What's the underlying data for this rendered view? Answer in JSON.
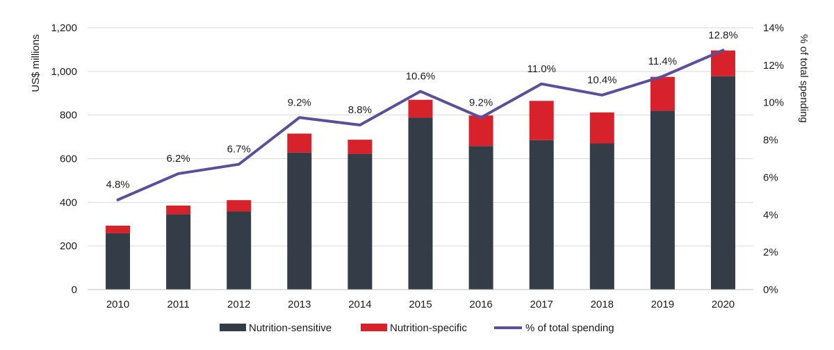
{
  "chart_data": {
    "type": "bar",
    "stacked": true,
    "categories": [
      "2010",
      "2011",
      "2012",
      "2013",
      "2014",
      "2015",
      "2016",
      "2017",
      "2018",
      "2019",
      "2020"
    ],
    "series": [
      {
        "name": "Nutrition-sensitive",
        "type": "bar",
        "axis": "left",
        "color": "#333c47",
        "values": [
          258,
          345,
          358,
          628,
          622,
          788,
          658,
          685,
          670,
          820,
          978
        ]
      },
      {
        "name": "Nutrition-specific",
        "type": "bar",
        "axis": "left",
        "color": "#d7222c",
        "values": [
          35,
          40,
          52,
          87,
          65,
          82,
          140,
          180,
          142,
          155,
          118
        ]
      },
      {
        "name": "% of total spending",
        "type": "line",
        "axis": "right",
        "color": "#5b4f9a",
        "values": [
          4.8,
          6.2,
          6.7,
          9.2,
          8.8,
          10.6,
          9.2,
          11.0,
          10.4,
          11.4,
          12.8
        ],
        "labels": [
          "4.8%",
          "6.2%",
          "6.7%",
          "9.2%",
          "8.8%",
          "10.6%",
          "9.2%",
          "11.0%",
          "10.4%",
          "11.4%",
          "12.8%"
        ]
      }
    ],
    "ylabel": "US$ millions",
    "ylabel_right": "% of total spending",
    "ylim": [
      0,
      1200
    ],
    "ylim_right": [
      0,
      14
    ],
    "yticks": [
      "0",
      "200",
      "400",
      "600",
      "800",
      "1,000",
      "1,200"
    ],
    "yticks_right": [
      "0%",
      "2%",
      "4%",
      "6%",
      "8%",
      "10%",
      "12%",
      "14%"
    ],
    "grid": true,
    "legend_position": "bottom"
  }
}
